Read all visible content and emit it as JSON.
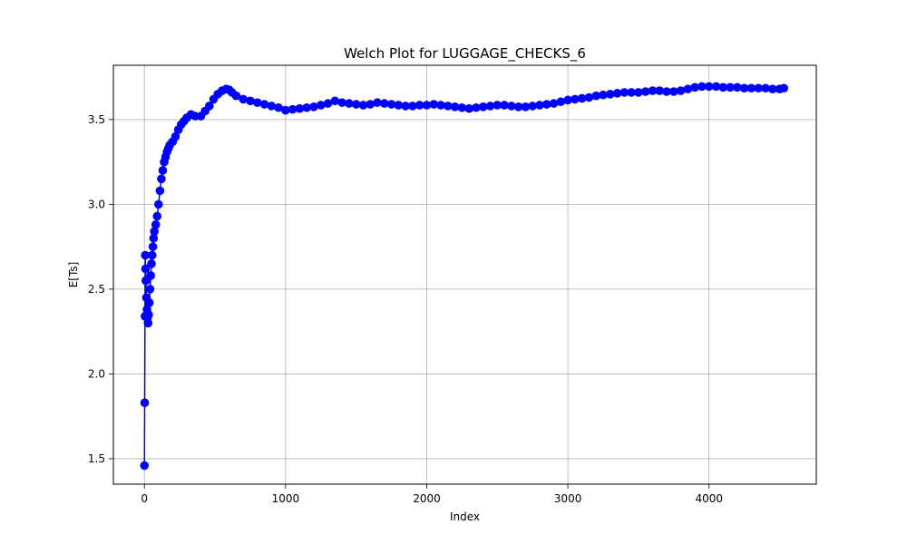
{
  "chart_data": {
    "type": "line",
    "title": "Welch Plot for LUGGAGE_CHECKS_6",
    "xlabel": "Index",
    "ylabel": "E[Ts]",
    "xlim": [
      -220,
      4760
    ],
    "ylim": [
      1.35,
      3.82
    ],
    "xticks": [
      0,
      1000,
      2000,
      3000,
      4000
    ],
    "yticks": [
      1.5,
      2.0,
      2.5,
      3.0,
      3.5
    ],
    "xtick_labels": [
      "0",
      "1000",
      "2000",
      "3000",
      "4000"
    ],
    "ytick_labels": [
      "1.5",
      "2.0",
      "2.5",
      "3.0",
      "3.5"
    ],
    "grid": true,
    "line_color": "#0000ff",
    "marker": "circle",
    "series": [
      {
        "x": [
          0,
          2,
          4,
          6,
          8,
          10,
          14,
          18,
          22,
          26,
          30,
          35,
          40,
          45,
          50,
          55,
          60,
          65,
          70,
          80,
          90,
          100,
          110,
          120,
          130,
          140,
          150,
          160,
          170,
          180,
          200,
          220,
          240,
          260,
          280,
          300,
          330,
          360,
          400,
          430,
          460,
          490,
          520,
          550,
          580,
          600,
          620,
          650,
          700,
          750,
          800,
          850,
          900,
          950,
          1000,
          1050,
          1100,
          1150,
          1200,
          1250,
          1300,
          1350,
          1400,
          1450,
          1500,
          1550,
          1600,
          1650,
          1700,
          1750,
          1800,
          1850,
          1900,
          1950,
          2000,
          2050,
          2100,
          2150,
          2200,
          2250,
          2300,
          2350,
          2400,
          2450,
          2500,
          2550,
          2600,
          2650,
          2700,
          2750,
          2800,
          2850,
          2900,
          2950,
          3000,
          3050,
          3100,
          3150,
          3200,
          3250,
          3300,
          3350,
          3400,
          3450,
          3500,
          3550,
          3600,
          3650,
          3700,
          3750,
          3800,
          3850,
          3900,
          3950,
          4000,
          4050,
          4100,
          4150,
          4200,
          4250,
          4300,
          4350,
          4400,
          4450,
          4500,
          4530
        ],
        "values": [
          1.46,
          1.83,
          2.34,
          2.7,
          2.62,
          2.55,
          2.45,
          2.38,
          2.33,
          2.3,
          2.35,
          2.42,
          2.5,
          2.58,
          2.65,
          2.7,
          2.75,
          2.8,
          2.84,
          2.88,
          2.93,
          3.0,
          3.08,
          3.15,
          3.2,
          3.25,
          3.28,
          3.31,
          3.33,
          3.35,
          3.37,
          3.4,
          3.44,
          3.47,
          3.49,
          3.51,
          3.53,
          3.52,
          3.52,
          3.55,
          3.58,
          3.62,
          3.65,
          3.67,
          3.68,
          3.675,
          3.66,
          3.64,
          3.62,
          3.61,
          3.6,
          3.59,
          3.58,
          3.57,
          3.555,
          3.56,
          3.565,
          3.57,
          3.575,
          3.585,
          3.595,
          3.61,
          3.6,
          3.595,
          3.59,
          3.585,
          3.59,
          3.6,
          3.595,
          3.59,
          3.585,
          3.58,
          3.58,
          3.585,
          3.585,
          3.59,
          3.585,
          3.58,
          3.575,
          3.57,
          3.565,
          3.57,
          3.575,
          3.58,
          3.585,
          3.585,
          3.58,
          3.575,
          3.575,
          3.58,
          3.585,
          3.59,
          3.595,
          3.605,
          3.615,
          3.62,
          3.625,
          3.63,
          3.64,
          3.645,
          3.65,
          3.655,
          3.66,
          3.66,
          3.66,
          3.665,
          3.67,
          3.67,
          3.665,
          3.665,
          3.67,
          3.68,
          3.69,
          3.695,
          3.695,
          3.695,
          3.69,
          3.69,
          3.69,
          3.685,
          3.685,
          3.685,
          3.685,
          3.68,
          3.68,
          3.685
        ]
      }
    ]
  }
}
